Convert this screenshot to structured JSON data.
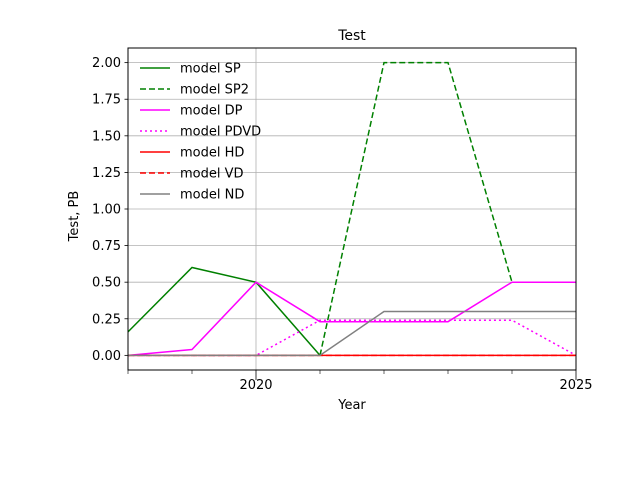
{
  "chart_data": {
    "type": "line",
    "title": "Test",
    "xlabel": "Year",
    "ylabel": "Test, PB",
    "xlim": [
      2018,
      2025
    ],
    "ylim": [
      -0.1,
      2.1
    ],
    "x_ticks": [
      2020,
      2025
    ],
    "x_tick_labels": [
      "2020",
      "2025"
    ],
    "y_ticks": [
      0,
      0.25,
      0.5,
      0.75,
      1.0,
      1.25,
      1.5,
      1.75,
      2.0
    ],
    "y_tick_labels": [
      "0.00",
      "0.25",
      "0.50",
      "0.75",
      "1.00",
      "1.25",
      "1.50",
      "1.75",
      "2.00"
    ],
    "grid": true,
    "legend_position": "top-left",
    "x": [
      2018,
      2019,
      2020,
      2021,
      2022,
      2023,
      2024,
      2025
    ],
    "series": [
      {
        "name": "model SP",
        "color": "#008000",
        "dash": "solid",
        "values": [
          0.16,
          0.6,
          0.5,
          0.0,
          null,
          null,
          null,
          null
        ]
      },
      {
        "name": "model SP2",
        "color": "#008000",
        "dash": "dashed",
        "values": [
          null,
          null,
          null,
          0.0,
          2.0,
          2.0,
          0.5,
          0.5
        ]
      },
      {
        "name": "model DP",
        "color": "#ff00ff",
        "dash": "solid",
        "values": [
          0.0,
          0.04,
          0.5,
          0.23,
          0.23,
          0.23,
          0.5,
          0.5
        ]
      },
      {
        "name": "model PDVD",
        "color": "#ff00ff",
        "dash": "dotted",
        "values": [
          0.0,
          0.0,
          0.0,
          0.24,
          0.24,
          0.24,
          0.24,
          0.0
        ]
      },
      {
        "name": "model HD",
        "color": "#ff0000",
        "dash": "solid",
        "values": [
          0,
          0,
          0,
          0,
          0,
          0,
          0,
          0
        ]
      },
      {
        "name": "model VD",
        "color": "#ff0000",
        "dash": "dashed",
        "values": [
          0,
          0,
          0,
          0,
          0,
          0,
          0,
          0
        ]
      },
      {
        "name": "model ND",
        "color": "#808080",
        "dash": "solid",
        "values": [
          0.0,
          0.0,
          0.0,
          0.0,
          0.3,
          0.3,
          0.3,
          0.3
        ]
      }
    ]
  }
}
